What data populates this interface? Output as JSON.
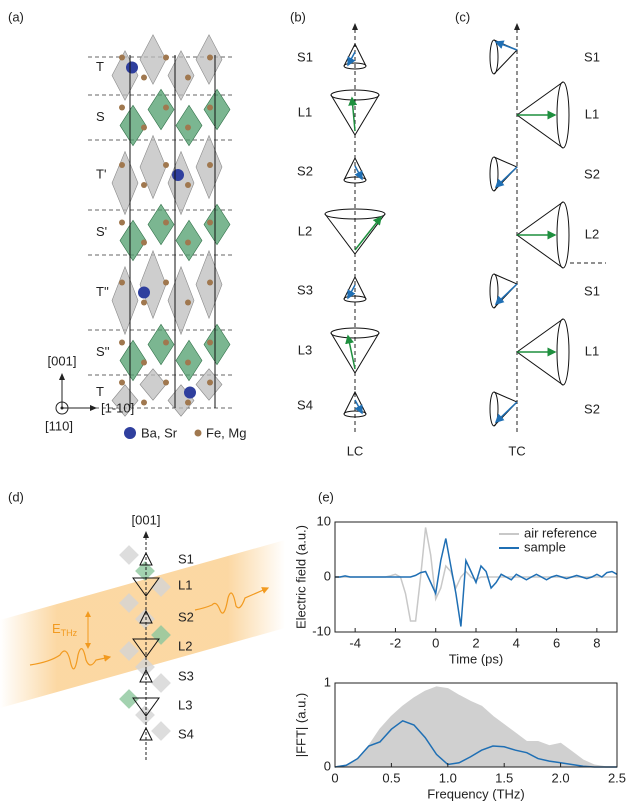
{
  "panel_a": {
    "label": "(a)",
    "layers": [
      "T",
      "S",
      "T'",
      "S'",
      "T''",
      "S''",
      "T"
    ],
    "axes": {
      "up": "[001]",
      "right": "[1-10]",
      "out": "[110]"
    },
    "legend": [
      "Ba, Sr",
      "Fe, Mg"
    ]
  },
  "panel_b": {
    "label": "(b)",
    "rows": [
      "S1",
      "L1",
      "S2",
      "L2",
      "S3",
      "L3",
      "S4"
    ],
    "axis_label": "LC"
  },
  "panel_c": {
    "label": "(c)",
    "rows": [
      "S1",
      "L1",
      "S2",
      "L2",
      "S1",
      "L1",
      "S2"
    ],
    "axis_label": "TC"
  },
  "panel_d": {
    "label": "(d)",
    "axis": "[001]",
    "rows": [
      "S1",
      "L1",
      "S2",
      "L2",
      "S3",
      "L3",
      "S4"
    ],
    "field": {
      "symbol": "E",
      "subscript": "THz"
    }
  },
  "panel_e": {
    "label": "(e)"
  },
  "chart_data": [
    {
      "type": "line",
      "xlabel": "Time (ps)",
      "ylabel": "Electric field (a.u.)",
      "x": [
        -5,
        -4.75,
        -4.5,
        -4.25,
        -4,
        -3.75,
        -3.5,
        -3.25,
        -3,
        -2.75,
        -2.5,
        -2.25,
        -2,
        -1.75,
        -1.5,
        -1.25,
        -1,
        -0.75,
        -0.5,
        -0.25,
        0,
        0.25,
        0.5,
        0.75,
        1,
        1.25,
        1.5,
        1.75,
        2,
        2.25,
        2.5,
        2.75,
        3,
        3.25,
        3.5,
        3.75,
        4,
        4.25,
        4.5,
        4.75,
        5,
        5.25,
        5.5,
        5.75,
        6,
        6.25,
        6.5,
        6.75,
        7,
        7.25,
        7.5,
        7.75,
        8,
        8.25,
        8.5,
        8.75,
        9
      ],
      "series": [
        {
          "name": "air reference",
          "color": "#c8c8c8",
          "values": [
            0,
            0,
            0,
            0,
            0,
            0,
            0,
            0,
            0,
            0,
            0,
            0.2,
            0.5,
            0,
            -3,
            -8,
            -8,
            0,
            9,
            4,
            -4,
            -2,
            2,
            1,
            -2,
            0,
            1,
            0,
            -0.5,
            0,
            0,
            0,
            0,
            0,
            0,
            0,
            0,
            0,
            0,
            0,
            0,
            0,
            0,
            0,
            0,
            0,
            0,
            0,
            0,
            0,
            0,
            0,
            0,
            0,
            0,
            0,
            0
          ]
        },
        {
          "name": "sample",
          "color": "#1f6fb4",
          "values": [
            0,
            0,
            0.2,
            0,
            0,
            0,
            0,
            0,
            0,
            0,
            0,
            0,
            0,
            0,
            0,
            0,
            0.3,
            0.8,
            1,
            -1,
            -3,
            3,
            7,
            2,
            -3,
            -9,
            3,
            1,
            -1,
            2,
            1,
            -2,
            -1,
            0.5,
            0,
            -0.5,
            0.5,
            0,
            -0.5,
            0,
            0.5,
            0,
            -0.5,
            0,
            0.3,
            0,
            -0.3,
            0,
            0.3,
            0,
            -0.3,
            0,
            0.5,
            0,
            0.8,
            1,
            0.5
          ]
        }
      ],
      "xlim": [
        -5,
        9
      ],
      "ylim": [
        -10,
        10
      ],
      "xticks": [
        -4,
        -2,
        0,
        2,
        4,
        6,
        8
      ],
      "yticks": [
        -10,
        0,
        10
      ],
      "legend": "upper right"
    },
    {
      "type": "line",
      "xlabel": "Frequency (THz)",
      "ylabel": "|FFT| (a.u.)",
      "x": [
        0,
        0.1,
        0.2,
        0.3,
        0.4,
        0.5,
        0.6,
        0.7,
        0.8,
        0.9,
        1,
        1.1,
        1.2,
        1.3,
        1.4,
        1.5,
        1.6,
        1.7,
        1.8,
        1.9,
        2,
        2.1,
        2.2,
        2.3,
        2.4,
        2.5
      ],
      "series": [
        {
          "color": "#d0d0d0",
          "style": "area",
          "values": [
            0,
            0.02,
            0.1,
            0.25,
            0.45,
            0.6,
            0.72,
            0.82,
            0.9,
            0.95,
            0.93,
            0.85,
            0.78,
            0.72,
            0.6,
            0.5,
            0.4,
            0.3,
            0.3,
            0.25,
            0.28,
            0.18,
            0.08,
            0.02,
            0,
            0
          ]
        },
        {
          "color": "#1f6fb4",
          "values": [
            0,
            0.02,
            0.1,
            0.25,
            0.3,
            0.45,
            0.55,
            0.5,
            0.35,
            0.15,
            0.03,
            0.05,
            0.12,
            0.2,
            0.25,
            0.24,
            0.2,
            0.17,
            0.1,
            0.07,
            0.05,
            0.03,
            0.01,
            0,
            0,
            0
          ]
        }
      ],
      "xlim": [
        0,
        2.5
      ],
      "ylim": [
        0,
        1
      ],
      "xticks": [
        0,
        0.5,
        {
          "value": 1,
          "label": "1.0"
        },
        1.5,
        {
          "value": 2,
          "label": "2.0"
        },
        2.5
      ],
      "yticks": [
        0,
        1
      ]
    }
  ]
}
